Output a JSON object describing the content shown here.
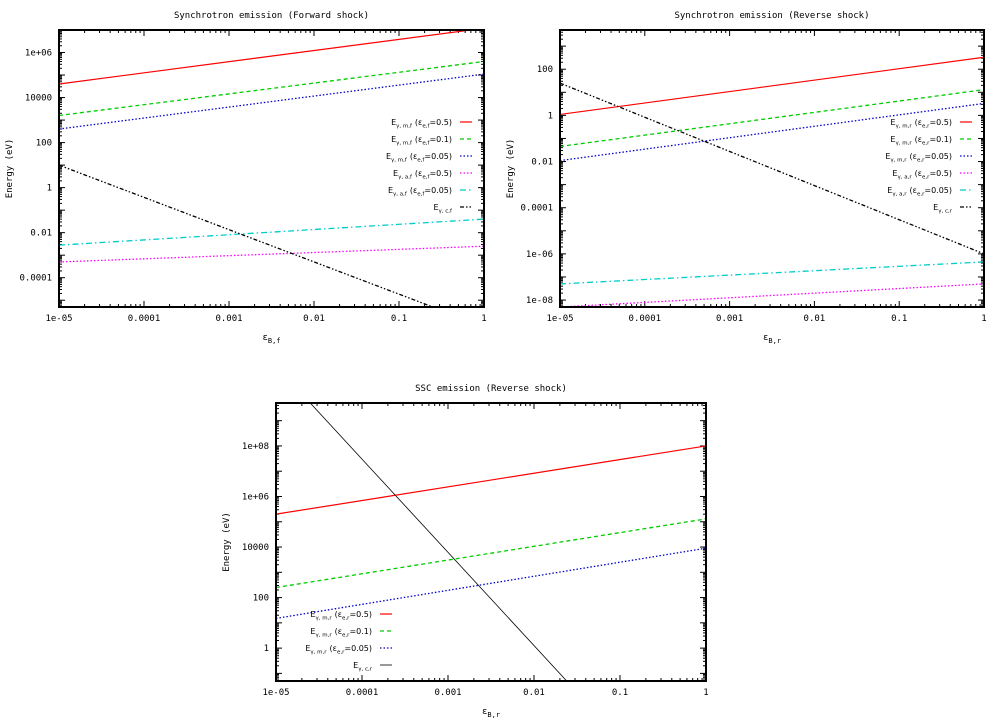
{
  "chart_data": [
    {
      "type": "line",
      "title": "Synchrotron emission (Forward shock)",
      "xlabel": "εB,f",
      "ylabel": "Energy (eV)",
      "xscale": "log",
      "yscale": "log",
      "xlim": [
        1e-05,
        1
      ],
      "ylim": [
        5e-06,
        10000000.0
      ],
      "x_ticks": [
        "1e-05",
        "0.0001",
        "0.001",
        "0.01",
        "0.1",
        "1"
      ],
      "y_ticks": [
        "1e+06",
        "10000",
        "100",
        "1",
        "0.01",
        "0.0001"
      ],
      "legend_position": "right",
      "series": [
        {
          "legend_main": "E",
          "legend_sub": "γ, m,f",
          "legend_param": "(ε",
          "legend_param_sub": "e,f",
          "legend_value": "=0.5)",
          "color": "#ff0000",
          "style": "solid",
          "x": [
            1e-05,
            1
          ],
          "y": [
            40000.0,
            12000000.0
          ]
        },
        {
          "legend_main": "E",
          "legend_sub": "γ, m,f",
          "legend_param": "(ε",
          "legend_param_sub": "e,f",
          "legend_value": "=0.1)",
          "color": "#00cc00",
          "style": "dashed",
          "x": [
            1e-05,
            1
          ],
          "y": [
            1600.0,
            400000.0
          ]
        },
        {
          "legend_main": "E",
          "legend_sub": "γ, m,f",
          "legend_param": "(ε",
          "legend_param_sub": "e,f",
          "legend_value": "=0.05)",
          "color": "#0000cc",
          "style": "dotted",
          "x": [
            1e-05,
            1
          ],
          "y": [
            400.0,
            110000.0
          ]
        },
        {
          "legend_main": "E",
          "legend_sub": "γ, a,f",
          "legend_param": "(ε",
          "legend_param_sub": "e,f",
          "legend_value": "=0.5)",
          "color": "#ff00ff",
          "style": "dotted",
          "x": [
            1e-05,
            1
          ],
          "y": [
            0.0005,
            0.0025
          ]
        },
        {
          "legend_main": "E",
          "legend_sub": "γ, a,f",
          "legend_param": "(ε",
          "legend_param_sub": "e,f",
          "legend_value": "=0.05)",
          "color": "#00cccc",
          "style": "dashdot",
          "x": [
            1e-05,
            1
          ],
          "y": [
            0.0028,
            0.04
          ]
        },
        {
          "legend_main": "E",
          "legend_sub": "γ, c,f",
          "legend_param": "",
          "legend_param_sub": "",
          "legend_value": "",
          "color": "#000000",
          "style": "dashdotdot",
          "x": [
            1e-05,
            0.25
          ],
          "y": [
            10,
            5e-06
          ]
        }
      ]
    },
    {
      "type": "line",
      "title": "Synchrotron emission (Reverse shock)",
      "xlabel": "εB,r",
      "ylabel": "Energy (eV)",
      "xscale": "log",
      "yscale": "log",
      "xlim": [
        1e-05,
        1
      ],
      "ylim": [
        5e-09,
        5000
      ],
      "x_ticks": [
        "1e-05",
        "0.0001",
        "0.001",
        "0.01",
        "0.1",
        "1"
      ],
      "y_ticks": [
        "100",
        "1",
        "0.01",
        "0.0001",
        "1e-06",
        "1e-08"
      ],
      "legend_position": "right",
      "series": [
        {
          "legend_main": "E",
          "legend_sub": "γ, m,r",
          "legend_param": "(ε",
          "legend_param_sub": "e,r",
          "legend_value": "=0.5)",
          "color": "#ff0000",
          "style": "solid",
          "x": [
            1e-05,
            1
          ],
          "y": [
            1.1,
            330
          ]
        },
        {
          "legend_main": "E",
          "legend_sub": "γ, m,r",
          "legend_param": "(ε",
          "legend_param_sub": "e,r",
          "legend_value": "=0.1)",
          "color": "#00cc00",
          "style": "dashed",
          "x": [
            1e-05,
            1
          ],
          "y": [
            0.045,
            13
          ]
        },
        {
          "legend_main": "E",
          "legend_sub": "γ, m,r",
          "legend_param": "(ε",
          "legend_param_sub": "e,r",
          "legend_value": "=0.05)",
          "color": "#0000cc",
          "style": "dotted",
          "x": [
            1e-05,
            1
          ],
          "y": [
            0.011,
            3.3
          ]
        },
        {
          "legend_main": "E",
          "legend_sub": "γ, a,r",
          "legend_param": "(ε",
          "legend_param_sub": "e,r",
          "legend_value": "=0.5)",
          "color": "#ff00ff",
          "style": "dotted",
          "x": [
            1e-05,
            1
          ],
          "y": [
            5e-09,
            5e-08
          ]
        },
        {
          "legend_main": "E",
          "legend_sub": "γ, a,r",
          "legend_param": "(ε",
          "legend_param_sub": "e,r",
          "legend_value": "=0.05)",
          "color": "#00cccc",
          "style": "dashdot",
          "x": [
            1e-05,
            1
          ],
          "y": [
            5e-08,
            4.5e-07
          ]
        },
        {
          "legend_main": "E",
          "legend_sub": "γ, c,r",
          "legend_param": "",
          "legend_param_sub": "",
          "legend_value": "",
          "color": "#000000",
          "style": "dashdotdot",
          "x": [
            1e-05,
            1
          ],
          "y": [
            25,
            1e-06
          ]
        }
      ]
    },
    {
      "type": "line",
      "title": "SSC emission (Reverse shock)",
      "xlabel": "εB,r",
      "ylabel": "Energy (eV)",
      "xscale": "log",
      "yscale": "log",
      "xlim": [
        1e-05,
        1
      ],
      "ylim": [
        0.05,
        5000000000.0
      ],
      "x_ticks": [
        "1e-05",
        "0.0001",
        "0.001",
        "0.01",
        "0.1",
        "1"
      ],
      "y_ticks": [
        "1e+08",
        "1e+06",
        "10000",
        "100",
        "1"
      ],
      "legend_position": "bottom-left",
      "series": [
        {
          "legend_main": "E",
          "legend_sub": "γ, m,r",
          "legend_param": "(ε",
          "legend_param_sub": "e,r",
          "legend_value": "=0.5)",
          "color": "#ff0000",
          "style": "solid",
          "x": [
            1e-05,
            1
          ],
          "y": [
            200000.0,
            100000000.0
          ]
        },
        {
          "legend_main": "E",
          "legend_sub": "γ, m,r",
          "legend_param": "(ε",
          "legend_param_sub": "e,r",
          "legend_value": "=0.1)",
          "color": "#00cc00",
          "style": "dashed",
          "x": [
            1e-05,
            1
          ],
          "y": [
            250.0,
            130000.0
          ]
        },
        {
          "legend_main": "E",
          "legend_sub": "γ, m,r",
          "legend_param": "(ε",
          "legend_param_sub": "e,r",
          "legend_value": "=0.05)",
          "color": "#0000cc",
          "style": "dotted",
          "x": [
            1e-05,
            1
          ],
          "y": [
            15,
            9000.0
          ]
        },
        {
          "legend_main": "E",
          "legend_sub": "γ, c,r",
          "legend_param": "",
          "legend_param_sub": "",
          "legend_value": "",
          "color": "#000000",
          "style": "solid-thin",
          "x": [
            2.5e-05,
            0.024
          ],
          "y": [
            5000000000.0,
            0.05
          ]
        }
      ]
    }
  ]
}
